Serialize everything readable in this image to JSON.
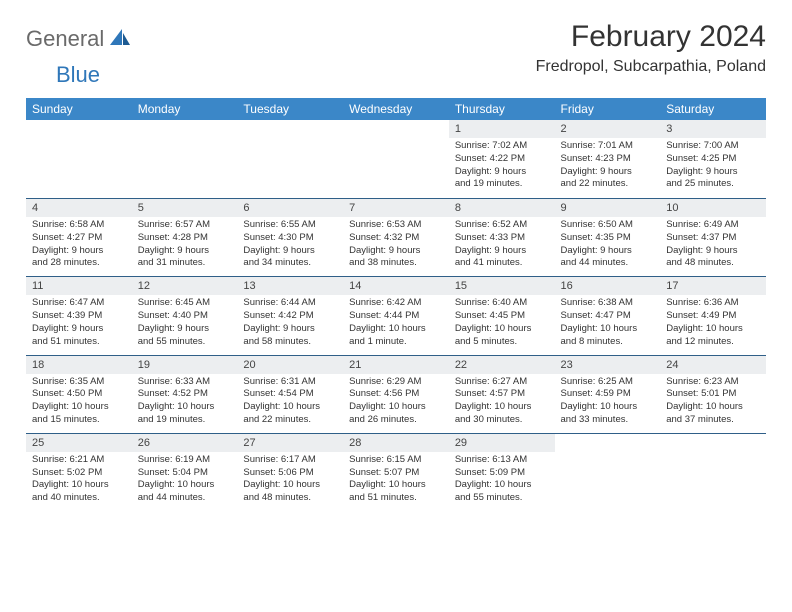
{
  "logo": {
    "general": "General",
    "blue": "Blue"
  },
  "title": "February 2024",
  "location": "Fredropol, Subcarpathia, Poland",
  "colors": {
    "header_bg": "#3b87c8",
    "header_text": "#ffffff",
    "daynum_bg": "#eceef0",
    "border": "#2f5f88",
    "text": "#333333",
    "logo_gray": "#6a6a6a",
    "logo_blue": "#2f77b9"
  },
  "columns": [
    "Sunday",
    "Monday",
    "Tuesday",
    "Wednesday",
    "Thursday",
    "Friday",
    "Saturday"
  ],
  "weeks": [
    [
      {
        "empty": true
      },
      {
        "empty": true
      },
      {
        "empty": true
      },
      {
        "empty": true
      },
      {
        "n": "1",
        "sr": "Sunrise: 7:02 AM",
        "ss": "Sunset: 4:22 PM",
        "dl1": "Daylight: 9 hours",
        "dl2": "and 19 minutes."
      },
      {
        "n": "2",
        "sr": "Sunrise: 7:01 AM",
        "ss": "Sunset: 4:23 PM",
        "dl1": "Daylight: 9 hours",
        "dl2": "and 22 minutes."
      },
      {
        "n": "3",
        "sr": "Sunrise: 7:00 AM",
        "ss": "Sunset: 4:25 PM",
        "dl1": "Daylight: 9 hours",
        "dl2": "and 25 minutes."
      }
    ],
    [
      {
        "n": "4",
        "sr": "Sunrise: 6:58 AM",
        "ss": "Sunset: 4:27 PM",
        "dl1": "Daylight: 9 hours",
        "dl2": "and 28 minutes."
      },
      {
        "n": "5",
        "sr": "Sunrise: 6:57 AM",
        "ss": "Sunset: 4:28 PM",
        "dl1": "Daylight: 9 hours",
        "dl2": "and 31 minutes."
      },
      {
        "n": "6",
        "sr": "Sunrise: 6:55 AM",
        "ss": "Sunset: 4:30 PM",
        "dl1": "Daylight: 9 hours",
        "dl2": "and 34 minutes."
      },
      {
        "n": "7",
        "sr": "Sunrise: 6:53 AM",
        "ss": "Sunset: 4:32 PM",
        "dl1": "Daylight: 9 hours",
        "dl2": "and 38 minutes."
      },
      {
        "n": "8",
        "sr": "Sunrise: 6:52 AM",
        "ss": "Sunset: 4:33 PM",
        "dl1": "Daylight: 9 hours",
        "dl2": "and 41 minutes."
      },
      {
        "n": "9",
        "sr": "Sunrise: 6:50 AM",
        "ss": "Sunset: 4:35 PM",
        "dl1": "Daylight: 9 hours",
        "dl2": "and 44 minutes."
      },
      {
        "n": "10",
        "sr": "Sunrise: 6:49 AM",
        "ss": "Sunset: 4:37 PM",
        "dl1": "Daylight: 9 hours",
        "dl2": "and 48 minutes."
      }
    ],
    [
      {
        "n": "11",
        "sr": "Sunrise: 6:47 AM",
        "ss": "Sunset: 4:39 PM",
        "dl1": "Daylight: 9 hours",
        "dl2": "and 51 minutes."
      },
      {
        "n": "12",
        "sr": "Sunrise: 6:45 AM",
        "ss": "Sunset: 4:40 PM",
        "dl1": "Daylight: 9 hours",
        "dl2": "and 55 minutes."
      },
      {
        "n": "13",
        "sr": "Sunrise: 6:44 AM",
        "ss": "Sunset: 4:42 PM",
        "dl1": "Daylight: 9 hours",
        "dl2": "and 58 minutes."
      },
      {
        "n": "14",
        "sr": "Sunrise: 6:42 AM",
        "ss": "Sunset: 4:44 PM",
        "dl1": "Daylight: 10 hours",
        "dl2": "and 1 minute."
      },
      {
        "n": "15",
        "sr": "Sunrise: 6:40 AM",
        "ss": "Sunset: 4:45 PM",
        "dl1": "Daylight: 10 hours",
        "dl2": "and 5 minutes."
      },
      {
        "n": "16",
        "sr": "Sunrise: 6:38 AM",
        "ss": "Sunset: 4:47 PM",
        "dl1": "Daylight: 10 hours",
        "dl2": "and 8 minutes."
      },
      {
        "n": "17",
        "sr": "Sunrise: 6:36 AM",
        "ss": "Sunset: 4:49 PM",
        "dl1": "Daylight: 10 hours",
        "dl2": "and 12 minutes."
      }
    ],
    [
      {
        "n": "18",
        "sr": "Sunrise: 6:35 AM",
        "ss": "Sunset: 4:50 PM",
        "dl1": "Daylight: 10 hours",
        "dl2": "and 15 minutes."
      },
      {
        "n": "19",
        "sr": "Sunrise: 6:33 AM",
        "ss": "Sunset: 4:52 PM",
        "dl1": "Daylight: 10 hours",
        "dl2": "and 19 minutes."
      },
      {
        "n": "20",
        "sr": "Sunrise: 6:31 AM",
        "ss": "Sunset: 4:54 PM",
        "dl1": "Daylight: 10 hours",
        "dl2": "and 22 minutes."
      },
      {
        "n": "21",
        "sr": "Sunrise: 6:29 AM",
        "ss": "Sunset: 4:56 PM",
        "dl1": "Daylight: 10 hours",
        "dl2": "and 26 minutes."
      },
      {
        "n": "22",
        "sr": "Sunrise: 6:27 AM",
        "ss": "Sunset: 4:57 PM",
        "dl1": "Daylight: 10 hours",
        "dl2": "and 30 minutes."
      },
      {
        "n": "23",
        "sr": "Sunrise: 6:25 AM",
        "ss": "Sunset: 4:59 PM",
        "dl1": "Daylight: 10 hours",
        "dl2": "and 33 minutes."
      },
      {
        "n": "24",
        "sr": "Sunrise: 6:23 AM",
        "ss": "Sunset: 5:01 PM",
        "dl1": "Daylight: 10 hours",
        "dl2": "and 37 minutes."
      }
    ],
    [
      {
        "n": "25",
        "sr": "Sunrise: 6:21 AM",
        "ss": "Sunset: 5:02 PM",
        "dl1": "Daylight: 10 hours",
        "dl2": "and 40 minutes."
      },
      {
        "n": "26",
        "sr": "Sunrise: 6:19 AM",
        "ss": "Sunset: 5:04 PM",
        "dl1": "Daylight: 10 hours",
        "dl2": "and 44 minutes."
      },
      {
        "n": "27",
        "sr": "Sunrise: 6:17 AM",
        "ss": "Sunset: 5:06 PM",
        "dl1": "Daylight: 10 hours",
        "dl2": "and 48 minutes."
      },
      {
        "n": "28",
        "sr": "Sunrise: 6:15 AM",
        "ss": "Sunset: 5:07 PM",
        "dl1": "Daylight: 10 hours",
        "dl2": "and 51 minutes."
      },
      {
        "n": "29",
        "sr": "Sunrise: 6:13 AM",
        "ss": "Sunset: 5:09 PM",
        "dl1": "Daylight: 10 hours",
        "dl2": "and 55 minutes."
      },
      {
        "empty": true
      },
      {
        "empty": true
      }
    ]
  ]
}
